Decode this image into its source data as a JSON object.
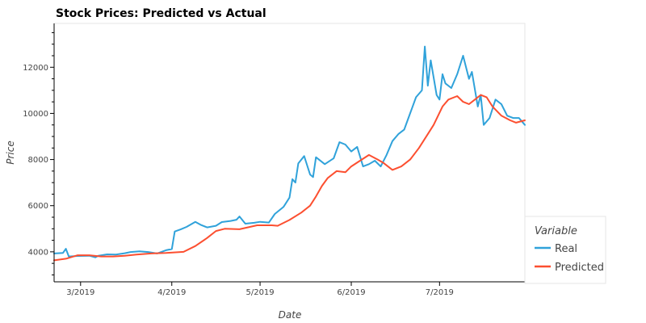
{
  "chart_data": {
    "type": "line",
    "title": "Stock Prices: Predicted vs Actual",
    "xlabel": "Date",
    "ylabel": "Price",
    "x_range": [
      "2019-02-20",
      "2019-07-30"
    ],
    "ylim": [
      2700,
      13900
    ],
    "x_ticks": [
      {
        "date": "2019-03-01",
        "label": "3/2019"
      },
      {
        "date": "2019-04-01",
        "label": "4/2019"
      },
      {
        "date": "2019-05-01",
        "label": "5/2019"
      },
      {
        "date": "2019-06-01",
        "label": "6/2019"
      },
      {
        "date": "2019-07-01",
        "label": "7/2019"
      }
    ],
    "y_ticks": [
      {
        "value": 4000,
        "label": "4000"
      },
      {
        "value": 6000,
        "label": "6000"
      },
      {
        "value": 8000,
        "label": "8000"
      },
      {
        "value": 10000,
        "label": "10000"
      },
      {
        "value": 12000,
        "label": "12000"
      }
    ],
    "grid": false,
    "legend": {
      "title": "Variable",
      "position": "bottom-right-outside"
    },
    "series": [
      {
        "name": "Real",
        "color": "#30a2da",
        "points": [
          [
            "2019-02-20",
            3930
          ],
          [
            "2019-02-23",
            3950
          ],
          [
            "2019-02-24",
            4130
          ],
          [
            "2019-02-25",
            3800
          ],
          [
            "2019-02-28",
            3820
          ],
          [
            "2019-03-04",
            3830
          ],
          [
            "2019-03-06",
            3760
          ],
          [
            "2019-03-07",
            3830
          ],
          [
            "2019-03-10",
            3890
          ],
          [
            "2019-03-13",
            3880
          ],
          [
            "2019-03-16",
            3940
          ],
          [
            "2019-03-18",
            3990
          ],
          [
            "2019-03-21",
            4020
          ],
          [
            "2019-03-24",
            3990
          ],
          [
            "2019-03-27",
            3930
          ],
          [
            "2019-03-30",
            4070
          ],
          [
            "2019-04-01",
            4120
          ],
          [
            "2019-04-02",
            4880
          ],
          [
            "2019-04-04",
            4970
          ],
          [
            "2019-04-06",
            5080
          ],
          [
            "2019-04-09",
            5300
          ],
          [
            "2019-04-11",
            5160
          ],
          [
            "2019-04-13",
            5060
          ],
          [
            "2019-04-16",
            5130
          ],
          [
            "2019-04-18",
            5290
          ],
          [
            "2019-04-21",
            5340
          ],
          [
            "2019-04-23",
            5390
          ],
          [
            "2019-04-24",
            5530
          ],
          [
            "2019-04-26",
            5220
          ],
          [
            "2019-04-29",
            5260
          ],
          [
            "2019-05-01",
            5300
          ],
          [
            "2019-05-04",
            5270
          ],
          [
            "2019-05-06",
            5640
          ],
          [
            "2019-05-09",
            5950
          ],
          [
            "2019-05-11",
            6350
          ],
          [
            "2019-05-12",
            7150
          ],
          [
            "2019-05-13",
            7000
          ],
          [
            "2019-05-14",
            7830
          ],
          [
            "2019-05-16",
            8150
          ],
          [
            "2019-05-18",
            7350
          ],
          [
            "2019-05-19",
            7240
          ],
          [
            "2019-05-20",
            8100
          ],
          [
            "2019-05-23",
            7800
          ],
          [
            "2019-05-26",
            8050
          ],
          [
            "2019-05-28",
            8750
          ],
          [
            "2019-05-30",
            8650
          ],
          [
            "2019-06-01",
            8350
          ],
          [
            "2019-06-03",
            8550
          ],
          [
            "2019-06-05",
            7700
          ],
          [
            "2019-06-07",
            7800
          ],
          [
            "2019-06-09",
            7950
          ],
          [
            "2019-06-11",
            7700
          ],
          [
            "2019-06-13",
            8200
          ],
          [
            "2019-06-15",
            8800
          ],
          [
            "2019-06-17",
            9100
          ],
          [
            "2019-06-19",
            9300
          ],
          [
            "2019-06-21",
            10000
          ],
          [
            "2019-06-23",
            10700
          ],
          [
            "2019-06-25",
            11000
          ],
          [
            "2019-06-26",
            12900
          ],
          [
            "2019-06-27",
            11200
          ],
          [
            "2019-06-28",
            12300
          ],
          [
            "2019-06-30",
            10800
          ],
          [
            "2019-07-01",
            10600
          ],
          [
            "2019-07-02",
            11700
          ],
          [
            "2019-07-03",
            11300
          ],
          [
            "2019-07-05",
            11100
          ],
          [
            "2019-07-07",
            11700
          ],
          [
            "2019-07-09",
            12500
          ],
          [
            "2019-07-11",
            11500
          ],
          [
            "2019-07-12",
            11800
          ],
          [
            "2019-07-14",
            10300
          ],
          [
            "2019-07-15",
            10800
          ],
          [
            "2019-07-16",
            9500
          ],
          [
            "2019-07-18",
            9800
          ],
          [
            "2019-07-20",
            10600
          ],
          [
            "2019-07-22",
            10400
          ],
          [
            "2019-07-24",
            9900
          ],
          [
            "2019-07-26",
            9800
          ],
          [
            "2019-07-28",
            9800
          ],
          [
            "2019-07-30",
            9500
          ]
        ]
      },
      {
        "name": "Predicted",
        "color": "#fc4f30",
        "points": [
          [
            "2019-02-20",
            3630
          ],
          [
            "2019-02-24",
            3700
          ],
          [
            "2019-02-28",
            3850
          ],
          [
            "2019-03-04",
            3850
          ],
          [
            "2019-03-08",
            3800
          ],
          [
            "2019-03-12",
            3800
          ],
          [
            "2019-03-16",
            3830
          ],
          [
            "2019-03-20",
            3880
          ],
          [
            "2019-03-25",
            3930
          ],
          [
            "2019-03-30",
            3950
          ],
          [
            "2019-04-05",
            4000
          ],
          [
            "2019-04-09",
            4250
          ],
          [
            "2019-04-13",
            4600
          ],
          [
            "2019-04-16",
            4900
          ],
          [
            "2019-04-19",
            5000
          ],
          [
            "2019-04-24",
            4980
          ],
          [
            "2019-04-30",
            5150
          ],
          [
            "2019-05-05",
            5150
          ],
          [
            "2019-05-07",
            5130
          ],
          [
            "2019-05-11",
            5380
          ],
          [
            "2019-05-15",
            5700
          ],
          [
            "2019-05-18",
            6000
          ],
          [
            "2019-05-20",
            6400
          ],
          [
            "2019-05-22",
            6850
          ],
          [
            "2019-05-24",
            7200
          ],
          [
            "2019-05-27",
            7500
          ],
          [
            "2019-05-30",
            7450
          ],
          [
            "2019-06-01",
            7700
          ],
          [
            "2019-06-04",
            7950
          ],
          [
            "2019-06-07",
            8200
          ],
          [
            "2019-06-10",
            8000
          ],
          [
            "2019-06-12",
            7850
          ],
          [
            "2019-06-15",
            7550
          ],
          [
            "2019-06-18",
            7700
          ],
          [
            "2019-06-21",
            8000
          ],
          [
            "2019-06-24",
            8500
          ],
          [
            "2019-06-27",
            9100
          ],
          [
            "2019-06-29",
            9500
          ],
          [
            "2019-07-02",
            10300
          ],
          [
            "2019-07-04",
            10600
          ],
          [
            "2019-07-07",
            10750
          ],
          [
            "2019-07-09",
            10500
          ],
          [
            "2019-07-11",
            10400
          ],
          [
            "2019-07-13",
            10600
          ],
          [
            "2019-07-15",
            10800
          ],
          [
            "2019-07-17",
            10700
          ],
          [
            "2019-07-19",
            10300
          ],
          [
            "2019-07-22",
            9900
          ],
          [
            "2019-07-25",
            9700
          ],
          [
            "2019-07-27",
            9600
          ],
          [
            "2019-07-30",
            9700
          ]
        ]
      }
    ]
  }
}
